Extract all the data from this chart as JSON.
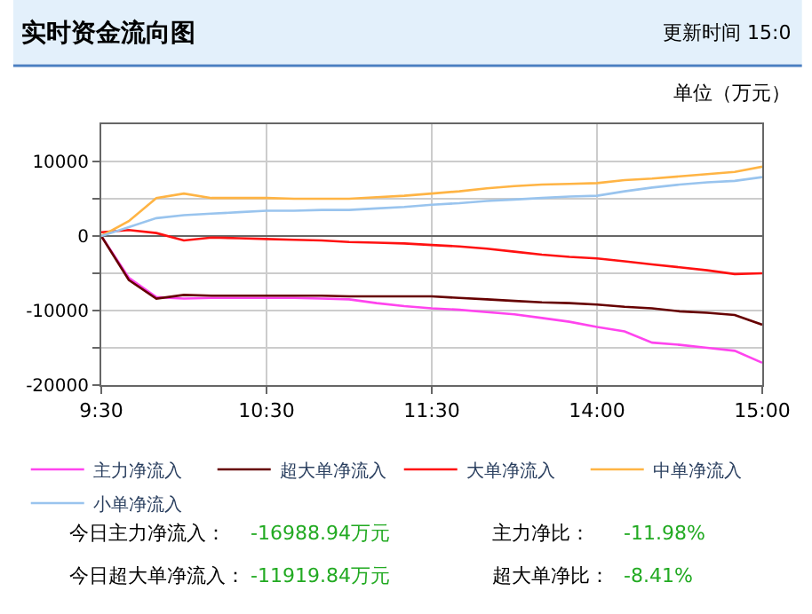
{
  "chart_data": {
    "type": "line",
    "title": "实时资金流向图",
    "subtitle": "更新时间 15:0",
    "ylabel": "单位（万元）",
    "categories": [
      "9:30",
      null,
      null,
      null,
      null,
      null,
      "10:30",
      null,
      null,
      null,
      null,
      null,
      "11:30",
      null,
      null,
      null,
      null,
      null,
      "14:00",
      null,
      null,
      null,
      null,
      null,
      "15:00"
    ],
    "ylim": [
      -20000,
      15000
    ],
    "yticks": [
      -20000,
      {
        "value": -15000,
        "label": null
      },
      -10000,
      {
        "value": -5000,
        "label": null
      },
      0,
      {
        "value": 5000,
        "label": null
      },
      10000
    ],
    "grid": true,
    "legend": "bottom",
    "marker": "none",
    "line_style": "solid",
    "series": [
      {
        "name": "主力净流入",
        "color": "#ff44ee",
        "values": [
          0,
          -5600,
          -8200,
          -8400,
          -8300,
          -8300,
          -8300,
          -8300,
          -8400,
          -8500,
          -9000,
          -9400,
          -9700,
          -9900,
          -10200,
          -10500,
          -11000,
          -11500,
          -12200,
          -12800,
          -14300,
          -14600,
          -15000,
          -15400,
          -17000
        ]
      },
      {
        "name": "超大单净流入",
        "color": "#660000",
        "values": [
          0,
          -5900,
          -8400,
          -7900,
          -8000,
          -8000,
          -8000,
          -8000,
          -8000,
          -8100,
          -8100,
          -8100,
          -8100,
          -8300,
          -8500,
          -8700,
          -8900,
          -9000,
          -9200,
          -9500,
          -9700,
          -10100,
          -10300,
          -10600,
          -11900
        ]
      },
      {
        "name": "大单净流入",
        "color": "#ff1111",
        "values": [
          500,
          800,
          400,
          -600,
          -200,
          -300,
          -400,
          -500,
          -600,
          -800,
          -900,
          -1000,
          -1200,
          -1400,
          -1700,
          -2100,
          -2500,
          -2800,
          -3000,
          -3400,
          -3800,
          -4200,
          -4600,
          -5100,
          -5000
        ]
      },
      {
        "name": "中单净流入",
        "color": "#ffb444",
        "values": [
          0,
          2000,
          5100,
          5700,
          5100,
          5100,
          5100,
          5000,
          5000,
          5000,
          5200,
          5400,
          5700,
          6000,
          6400,
          6700,
          6900,
          7000,
          7100,
          7500,
          7700,
          8000,
          8300,
          8600,
          9300
        ]
      },
      {
        "name": "小单净流入",
        "color": "#99c4ee",
        "values": [
          0,
          1200,
          2400,
          2800,
          3000,
          3200,
          3400,
          3400,
          3500,
          3500,
          3700,
          3900,
          4200,
          4400,
          4700,
          4900,
          5100,
          5300,
          5400,
          6000,
          6500,
          6900,
          7200,
          7400,
          7900
        ]
      }
    ],
    "annotations": [
      "今日主力净流入：",
      "-16988.94万元",
      "主力净比：",
      "-11.98%",
      "今日超大单净流入：",
      "-11919.84万元",
      "超大单净比：",
      "-8.41%"
    ]
  }
}
